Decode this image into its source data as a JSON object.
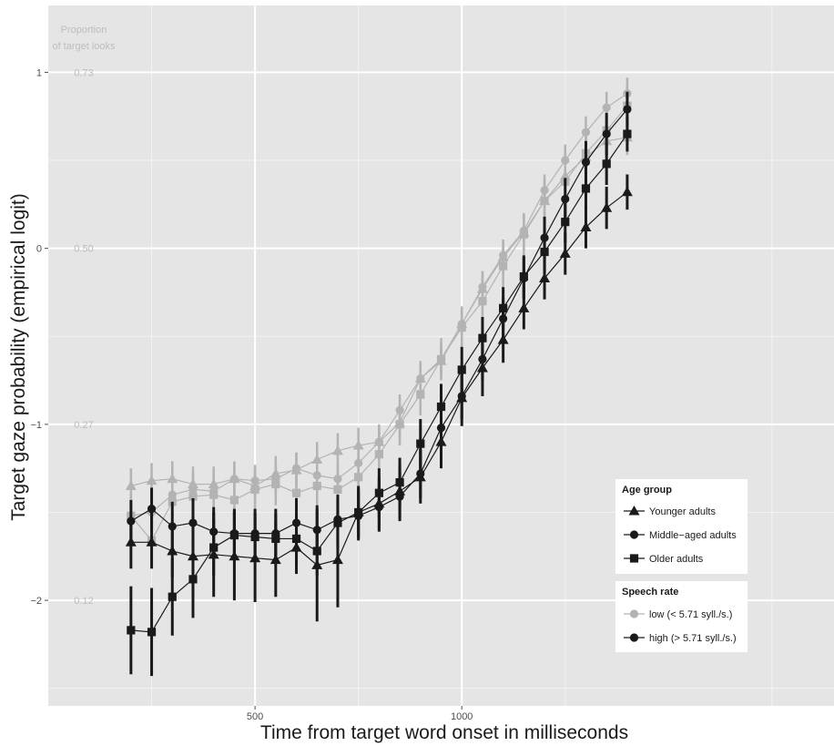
{
  "chart_data": {
    "type": "line",
    "xlabel": "Time from target word onset in milliseconds",
    "ylabel": "Target gaze probability (empirical logit)",
    "secondary_axis_title_line1": "Proportion",
    "secondary_axis_title_line2": "of target looks",
    "xlim": [
      0,
      1900
    ],
    "ylim": [
      -2.6,
      1.38
    ],
    "x_ticks": [
      {
        "value": 500,
        "label": "500"
      },
      {
        "value": 1000,
        "label": "1000"
      }
    ],
    "y_ticks": [
      {
        "value": 1,
        "label": "1",
        "prop": "0.73"
      },
      {
        "value": 0,
        "label": "0",
        "prop": "0.50"
      },
      {
        "value": -1,
        "label": "−1",
        "prop": "0.27"
      },
      {
        "value": -2,
        "label": "−2",
        "prop": "0.12"
      }
    ],
    "x": [
      200,
      250,
      300,
      350,
      400,
      450,
      500,
      550,
      600,
      650,
      700,
      750,
      800,
      850,
      900,
      950,
      1000,
      1050,
      1100,
      1150,
      1200,
      1250,
      1300,
      1350,
      1400
    ],
    "colors": {
      "low": "#b3b3b3",
      "high": "#1a1a1a",
      "panel": "#e5e5e5",
      "grid_major": "#ffffff",
      "grid_minor": "#f2f2f2"
    },
    "series": [
      {
        "age": "young",
        "rate": "low",
        "values": [
          -1.35,
          -1.32,
          -1.31,
          -1.34,
          -1.34,
          -1.31,
          -1.35,
          -1.28,
          -1.26,
          -1.2,
          -1.15,
          -1.12,
          -1.1,
          -0.99,
          -0.74,
          -0.64,
          -0.43,
          -0.23,
          -0.05,
          0.09,
          0.27,
          0.41,
          0.52,
          0.61,
          0.63
        ],
        "errors": [
          0.1,
          0.1,
          0.1,
          0.1,
          0.1,
          0.1,
          0.1,
          0.1,
          0.1,
          0.1,
          0.1,
          0.1,
          0.1,
          0.1,
          0.1,
          0.1,
          0.1,
          0.1,
          0.1,
          0.1,
          0.1,
          0.1,
          0.1,
          0.1,
          0.1
        ]
      },
      {
        "age": "middle",
        "rate": "low",
        "values": [
          -1.52,
          -1.5,
          -1.4,
          -1.37,
          -1.38,
          -1.31,
          -1.32,
          -1.31,
          -1.25,
          -1.29,
          -1.31,
          -1.22,
          -1.1,
          -0.92,
          -0.74,
          -0.63,
          -0.43,
          -0.22,
          -0.04,
          0.1,
          0.33,
          0.5,
          0.66,
          0.8,
          0.88
        ],
        "errors": [
          0.09,
          0.09,
          0.09,
          0.09,
          0.09,
          0.09,
          0.09,
          0.09,
          0.09,
          0.09,
          0.09,
          0.09,
          0.09,
          0.09,
          0.09,
          0.09,
          0.09,
          0.09,
          0.09,
          0.09,
          0.09,
          0.09,
          0.09,
          0.09,
          0.09
        ]
      },
      {
        "age": "old",
        "rate": "low",
        "values": [
          -1.52,
          -1.66,
          -1.44,
          -1.41,
          -1.4,
          -1.43,
          -1.37,
          -1.34,
          -1.39,
          -1.35,
          -1.37,
          -1.3,
          -1.17,
          -1.0,
          -0.83,
          -0.63,
          -0.45,
          -0.3,
          -0.1,
          0.08,
          0.27,
          0.38,
          0.54,
          0.67,
          0.81
        ],
        "errors": [
          0.12,
          0.12,
          0.12,
          0.12,
          0.12,
          0.12,
          0.12,
          0.12,
          0.12,
          0.12,
          0.12,
          0.12,
          0.12,
          0.12,
          0.12,
          0.12,
          0.12,
          0.12,
          0.12,
          0.12,
          0.12,
          0.12,
          0.12,
          0.12,
          0.12
        ]
      },
      {
        "age": "young",
        "rate": "high",
        "values": [
          -1.67,
          -1.67,
          -1.72,
          -1.75,
          -1.74,
          -1.75,
          -1.76,
          -1.77,
          -1.7,
          -1.8,
          -1.77,
          -1.5,
          -1.45,
          -1.38,
          -1.3,
          -1.1,
          -0.85,
          -0.68,
          -0.52,
          -0.34,
          -0.17,
          -0.03,
          0.12,
          0.23,
          0.32
        ],
        "errors": [
          0.15,
          0.15,
          0.15,
          0.23,
          0.24,
          0.25,
          0.25,
          0.21,
          0.15,
          0.32,
          0.27,
          0.15,
          0.15,
          0.15,
          0.15,
          0.15,
          0.16,
          0.16,
          0.13,
          0.12,
          0.12,
          0.12,
          0.12,
          0.12,
          0.1
        ]
      },
      {
        "age": "middle",
        "rate": "high",
        "values": [
          -1.55,
          -1.48,
          -1.58,
          -1.56,
          -1.61,
          -1.62,
          -1.62,
          -1.62,
          -1.56,
          -1.6,
          -1.54,
          -1.52,
          -1.47,
          -1.41,
          -1.28,
          -1.02,
          -0.84,
          -0.63,
          -0.4,
          -0.17,
          0.06,
          0.28,
          0.49,
          0.65,
          0.79
        ],
        "errors": [
          0.12,
          0.12,
          0.14,
          0.14,
          0.14,
          0.14,
          0.14,
          0.14,
          0.14,
          0.14,
          0.14,
          0.14,
          0.14,
          0.14,
          0.14,
          0.13,
          0.13,
          0.12,
          0.12,
          0.12,
          0.12,
          0.12,
          0.12,
          0.12,
          0.1
        ]
      },
      {
        "age": "old",
        "rate": "high",
        "values": [
          -2.17,
          -2.18,
          -1.98,
          -1.88,
          -1.7,
          -1.63,
          -1.64,
          -1.65,
          -1.65,
          -1.72,
          -1.56,
          -1.5,
          -1.39,
          -1.33,
          -1.11,
          -0.9,
          -0.69,
          -0.51,
          -0.34,
          -0.16,
          -0.02,
          0.15,
          0.34,
          0.48,
          0.65
        ],
        "errors": [
          0.25,
          0.25,
          0.22,
          0.22,
          0.16,
          0.14,
          0.14,
          0.14,
          0.14,
          0.14,
          0.14,
          0.14,
          0.14,
          0.14,
          0.14,
          0.13,
          0.13,
          0.12,
          0.12,
          0.12,
          0.12,
          0.12,
          0.12,
          0.12,
          0.1
        ]
      }
    ],
    "legend": {
      "placement": "bottom-right",
      "age_title": "Age group",
      "age_items": [
        {
          "key": "young",
          "label": "Younger adults",
          "shape": "triangle"
        },
        {
          "key": "middle",
          "label": "Middle−aged adults",
          "shape": "circle"
        },
        {
          "key": "old",
          "label": "Older adults",
          "shape": "square"
        }
      ],
      "rate_title": "Speech rate",
      "rate_items": [
        {
          "key": "low",
          "label": "low (< 5.71 syll./s.)"
        },
        {
          "key": "high",
          "label": "high (> 5.71 syll./s.)"
        }
      ]
    }
  }
}
